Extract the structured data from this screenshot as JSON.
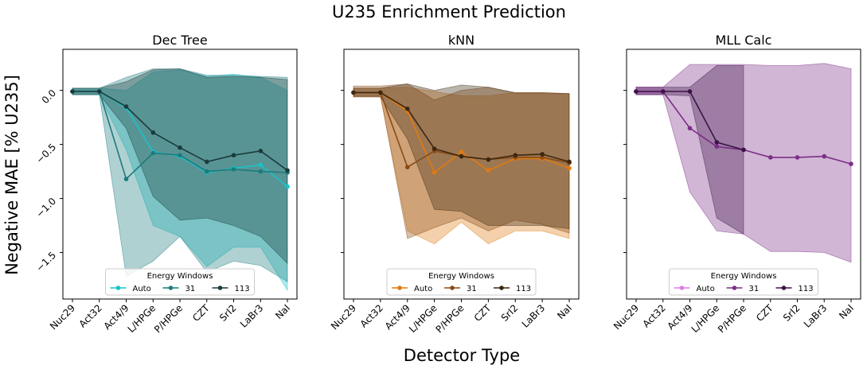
{
  "figure": {
    "title": "U235 Enrichment Prediction",
    "xlabel": "Detector Type",
    "ylabel": "Negative MAE [% U235]"
  },
  "chart_data": [
    {
      "type": "line",
      "title": "Dec Tree",
      "categories": [
        "Nuc29",
        "Act32",
        "Act4/9",
        "L/HPGe",
        "P/HPGe",
        "CZT",
        "SrI2",
        "LaBr3",
        "NaI"
      ],
      "ylim": [
        -1.93,
        0.38
      ],
      "yticks": [
        0.0,
        -0.5,
        -1.0,
        -1.5
      ],
      "ytick_labels": [
        "0.0",
        "−0.5",
        "−1.0",
        "−1.5"
      ],
      "show_yticklabels": true,
      "legend": {
        "title": "Energy Windows",
        "position": "lower center"
      },
      "series": [
        {
          "name": "Auto",
          "color": "#17c3c9",
          "values": [
            -0.01,
            -0.01,
            -0.16,
            -0.57,
            -0.61,
            -0.76,
            -0.72,
            -0.69,
            -0.89
          ],
          "band_upper": [
            0.02,
            0.02,
            0.0,
            0.17,
            0.19,
            0.13,
            0.15,
            0.12,
            0.0
          ],
          "band_lower": [
            -0.04,
            -0.04,
            -0.55,
            -1.25,
            -1.35,
            -1.63,
            -1.45,
            -1.45,
            -1.85
          ]
        },
        {
          "name": "31",
          "color": "#1c7b7d",
          "values": [
            -0.01,
            -0.01,
            -0.82,
            -0.58,
            -0.6,
            -0.75,
            -0.73,
            -0.75,
            -0.76
          ],
          "band_upper": [
            0.02,
            0.02,
            0.12,
            0.2,
            0.2,
            0.14,
            0.14,
            0.13,
            0.12
          ],
          "band_lower": [
            -0.04,
            -0.04,
            -1.72,
            -1.58,
            -1.35,
            -1.68,
            -1.58,
            -1.62,
            -1.77
          ]
        },
        {
          "name": "113",
          "color": "#1b3b3b",
          "values": [
            -0.01,
            -0.01,
            -0.15,
            -0.39,
            -0.53,
            -0.66,
            -0.6,
            -0.56,
            -0.74
          ],
          "band_upper": [
            0.02,
            0.02,
            0.08,
            0.19,
            0.2,
            0.12,
            0.13,
            0.12,
            0.1
          ],
          "band_lower": [
            -0.04,
            -0.04,
            -0.35,
            -0.98,
            -1.2,
            -1.18,
            -1.25,
            -1.35,
            -1.6
          ]
        }
      ]
    },
    {
      "type": "line",
      "title": "kNN",
      "categories": [
        "Nuc29",
        "Act32",
        "Act4/9",
        "L/HPGe",
        "P/HPGe",
        "CZT",
        "SrI2",
        "LaBr3",
        "NaI"
      ],
      "ylim": [
        -1.93,
        0.38
      ],
      "yticks": [
        0.0,
        -0.5,
        -1.0,
        -1.5
      ],
      "show_yticklabels": false,
      "legend": {
        "title": "Energy Windows",
        "position": "lower center"
      },
      "series": [
        {
          "name": "Auto",
          "color": "#e07b10",
          "values": [
            -0.02,
            -0.02,
            -0.19,
            -0.76,
            -0.57,
            -0.74,
            -0.63,
            -0.63,
            -0.72
          ],
          "band_upper": [
            0.02,
            0.02,
            0.03,
            -0.01,
            -0.05,
            -0.05,
            -0.02,
            -0.02,
            -0.03
          ],
          "band_lower": [
            -0.06,
            -0.06,
            -1.3,
            -1.42,
            -1.22,
            -1.42,
            -1.3,
            -1.3,
            -1.37
          ]
        },
        {
          "name": "31",
          "color": "#8a4a14",
          "values": [
            -0.02,
            -0.02,
            -0.71,
            -0.56,
            -0.61,
            -0.64,
            -0.62,
            -0.62,
            -0.67
          ],
          "band_upper": [
            0.04,
            0.04,
            0.06,
            -0.09,
            0.0,
            0.03,
            -0.03,
            -0.03,
            -0.03
          ],
          "band_lower": [
            -0.05,
            -0.05,
            -1.37,
            -1.27,
            -1.18,
            -1.3,
            -1.2,
            -1.24,
            -1.32
          ]
        },
        {
          "name": "113",
          "color": "#3d2710",
          "values": [
            -0.02,
            -0.02,
            -0.17,
            -0.54,
            -0.61,
            -0.64,
            -0.6,
            -0.59,
            -0.66
          ],
          "band_upper": [
            0.02,
            0.02,
            0.06,
            0.0,
            0.05,
            0.03,
            -0.02,
            -0.02,
            -0.03
          ],
          "band_lower": [
            -0.06,
            -0.06,
            -0.45,
            -1.1,
            -1.12,
            -1.25,
            -1.25,
            -1.25,
            -1.28
          ]
        }
      ]
    },
    {
      "type": "line",
      "title": "MLL Calc",
      "categories": [
        "Nuc29",
        "Act32",
        "Act4/9",
        "L/HPGe",
        "P/HPGe",
        "CZT",
        "SrI2",
        "LaBr3",
        "NaI"
      ],
      "ylim": [
        -1.93,
        0.38
      ],
      "yticks": [
        0.0,
        -0.5,
        -1.0,
        -1.5
      ],
      "show_yticklabels": false,
      "legend": {
        "title": "Energy Windows",
        "position": "lower center"
      },
      "series": [
        {
          "name": "Auto",
          "color": "#e27be8",
          "values": [
            -0.01,
            -0.01,
            null,
            null,
            null,
            null,
            null,
            null,
            null
          ],
          "band_upper": [
            0.03,
            0.03,
            null,
            null,
            null,
            null,
            null,
            null,
            null
          ],
          "band_lower": [
            -0.04,
            -0.04,
            null,
            null,
            null,
            null,
            null,
            null,
            null
          ]
        },
        {
          "name": "31",
          "color": "#7b2f86",
          "values": [
            -0.01,
            -0.01,
            -0.35,
            -0.52,
            -0.55,
            -0.62,
            -0.62,
            -0.61,
            -0.68
          ],
          "band_upper": [
            0.03,
            0.03,
            0.24,
            0.24,
            0.24,
            0.23,
            0.23,
            0.25,
            0.2
          ],
          "band_lower": [
            -0.04,
            -0.04,
            -0.94,
            -1.3,
            -1.33,
            -1.49,
            -1.49,
            -1.5,
            -1.59
          ]
        },
        {
          "name": "113",
          "color": "#3c1348",
          "values": [
            -0.01,
            -0.01,
            -0.01,
            -0.48,
            -0.55,
            null,
            null,
            null,
            null
          ],
          "band_upper": [
            0.03,
            0.03,
            0.03,
            0.23,
            0.23,
            null,
            null,
            null,
            null
          ],
          "band_lower": [
            -0.04,
            -0.04,
            -0.05,
            -1.18,
            -1.33,
            null,
            null,
            null,
            null
          ]
        }
      ]
    }
  ]
}
